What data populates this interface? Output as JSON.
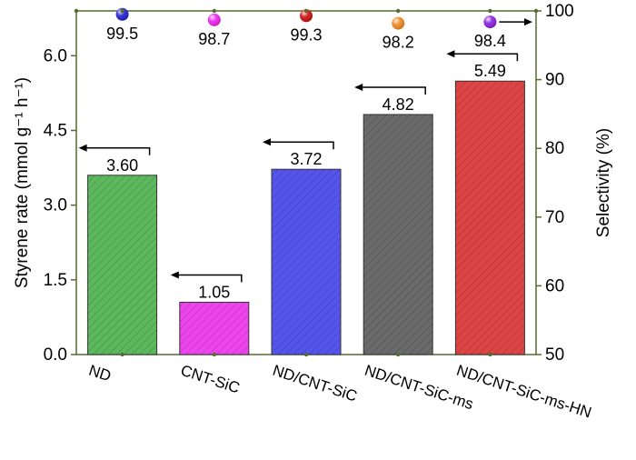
{
  "chart_data": {
    "type": "bar",
    "categories": [
      "ND",
      "CNT-SiC",
      "ND/CNT-SiC",
      "ND/CNT-SiC-ms",
      "ND/CNT-SiC-ms-HN"
    ],
    "series": [
      {
        "values": [
          3.6,
          1.05,
          3.72,
          4.82,
          5.49
        ],
        "value_labels": [
          "3.60",
          "1.05",
          "3.72",
          "4.82",
          "5.49"
        ],
        "axis": "left",
        "colors": [
          "#5cb85c",
          "#ee44ee",
          "#5555ee",
          "#6a6a6a",
          "#dd4444"
        ]
      },
      {
        "values": [
          99.5,
          98.7,
          99.3,
          98.2,
          98.4
        ],
        "value_labels": [
          "99.5",
          "98.7",
          "99.3",
          "98.2",
          "98.4"
        ],
        "axis": "right",
        "marker": "sphere",
        "colors": [
          "#2222cc",
          "#ee22ee",
          "#cc1111",
          "#ee8822",
          "#8822dd"
        ]
      }
    ],
    "ylabel_left": "Styrene rate (mmol g⁻¹ h⁻¹)",
    "ylabel_right": "Selectivity (%)",
    "ylim_left": [
      0,
      6.9
    ],
    "yticks_left": [
      "0.0",
      "1.5",
      "3.0",
      "4.5",
      "6.0"
    ],
    "ylim_right": [
      50,
      100
    ],
    "yticks_right": [
      "50",
      "60",
      "70",
      "80",
      "90",
      "100"
    ],
    "axis_color": "#556b2f"
  }
}
